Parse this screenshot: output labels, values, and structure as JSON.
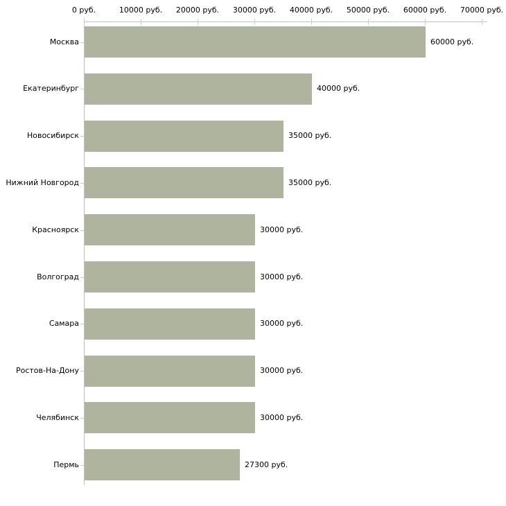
{
  "chart_data": {
    "type": "bar",
    "orientation": "horizontal",
    "title": "",
    "xlabel": "",
    "ylabel": "",
    "unit": "руб.",
    "categories": [
      "Москва",
      "Екатеринбург",
      "Новосибирск",
      "Нижний Новгород",
      "Красноярск",
      "Волгоград",
      "Самара",
      "Ростов-На-Дону",
      "Челябинск",
      "Пермь"
    ],
    "values": [
      60000,
      40000,
      35000,
      35000,
      30000,
      30000,
      30000,
      30000,
      30000,
      27300
    ],
    "value_labels": [
      "60000 руб.",
      "40000 руб.",
      "35000 руб.",
      "35000 руб.",
      "30000 руб.",
      "30000 руб.",
      "30000 руб.",
      "30000 руб.",
      "30000 руб.",
      "27300 руб."
    ],
    "x_axis": {
      "min": 0,
      "max": 70000,
      "tick_interval": 10000,
      "ticks": [
        {
          "value": 0,
          "label": "0 руб."
        },
        {
          "value": 10000,
          "label": "10000 руб."
        },
        {
          "value": 20000,
          "label": "20000 руб."
        },
        {
          "value": 30000,
          "label": "30000 руб."
        },
        {
          "value": 40000,
          "label": "40000 руб."
        },
        {
          "value": 50000,
          "label": "50000 руб."
        },
        {
          "value": 60000,
          "label": "60000 руб."
        },
        {
          "value": 70000,
          "label": "70000 руб."
        }
      ],
      "position": "top"
    },
    "grid": false,
    "legend": false,
    "colors": {
      "bar": "#aeb49d",
      "axis_line": "#c0c0c0",
      "tick_mark": "#d0d0a8",
      "text": "#000000",
      "background": "#ffffff"
    }
  }
}
